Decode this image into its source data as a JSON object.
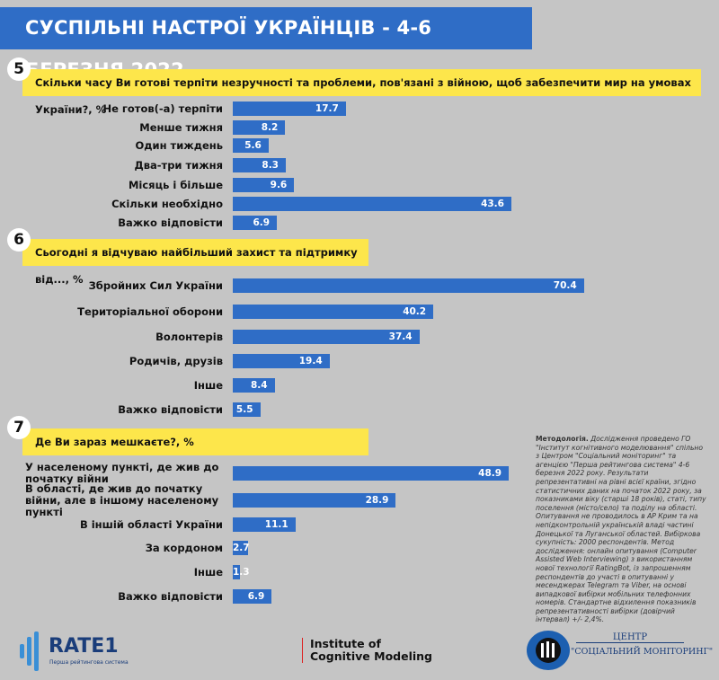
{
  "title": "СУСПІЛЬНІ НАСТРОЇ УКРАЇНЦІВ - 4-6 БЕРЕЗНЯ 2022",
  "colors": {
    "bar": "#2f6dc6",
    "banner": "#fde64b",
    "background": "#c5c5c5"
  },
  "chart_data": [
    {
      "type": "bar",
      "orientation": "horizontal",
      "number": "5",
      "title": "Скільки часу Ви готові терпіти незручності та проблеми, пов'язані з війною, щоб забезпечити мир на умовах України?, %",
      "categories": [
        "Не готов(-а) терпіти",
        "Менше тижня",
        "Один тиждень",
        "Два-три тижня",
        "Місяць і більше",
        "Скільки необхідно",
        "Важко відповісти"
      ],
      "values": [
        17.7,
        8.2,
        5.6,
        8.3,
        9.6,
        43.6,
        6.9
      ]
    },
    {
      "type": "bar",
      "orientation": "horizontal",
      "number": "6",
      "title": "Сьогодні я відчуваю найбільший захист та підтримку від..., %",
      "categories": [
        "Збройних Сил України",
        "Територіальної оборони",
        "Волонтерів",
        "Родичів, друзів",
        "Інше",
        "Важко відповісти"
      ],
      "values": [
        70.4,
        40.2,
        37.4,
        19.4,
        8.4,
        5.5
      ]
    },
    {
      "type": "bar",
      "orientation": "horizontal",
      "number": "7",
      "title": "Де Ви зараз мешкаєте?, %",
      "categories": [
        "У населеному пункті, де жив до початку війни",
        "В області, де жив до початку війни, але в іншому населеному пункті",
        "В іншій області України",
        "За кордоном",
        "Інше",
        "Важко відповісти"
      ],
      "values": [
        48.9,
        28.9,
        11.1,
        2.7,
        1.3,
        6.9
      ]
    }
  ],
  "methodology": {
    "heading": "Методологія.",
    "text": "Дослідження проведено ГО \"Інститут когнітивного моделювання\" спільно з Центром \"Соціальний моніторинг\" та агенцією \"Перша рейтингова система\" 4-6 березня 2022 року. Результати репрезентативні на рівні всієї країни, згідно статистичних даних на початок 2022 року, за показниками віку (старші 18 років), статі, типу поселення (місто/село) та поділу на області. Опитування не проводилось в АР Крим та на непідконтрольній українській владі частині Донецької та Луганської областей. Вибіркова сукупність: 2000 респондентів. Метод дослідження: онлайн опитування (Computer Assisted Web Interviewing) з використанням нової технології RatingBot, із запрошенням респондентів до участі в опитуванні у месенджерах Telegram та Viber, на основі випадкової вибірки мобільних телефонних номерів. Стандартне відхилення показників репрезентативності вибірки (довірчий інтервал) +/- 2,4%."
  },
  "logos": {
    "rate1": "RATE1",
    "rate1_sub": "Перша рейтингова система",
    "icm": "Institute of Cognitive Modeling",
    "icm_line1": "Institute of",
    "icm_line2": "Cognitive Modeling",
    "csm_line1": "ЦЕНТР",
    "csm_line2": "\"СОЦІАЛЬНИЙ МОНІТОРИНГ\""
  }
}
